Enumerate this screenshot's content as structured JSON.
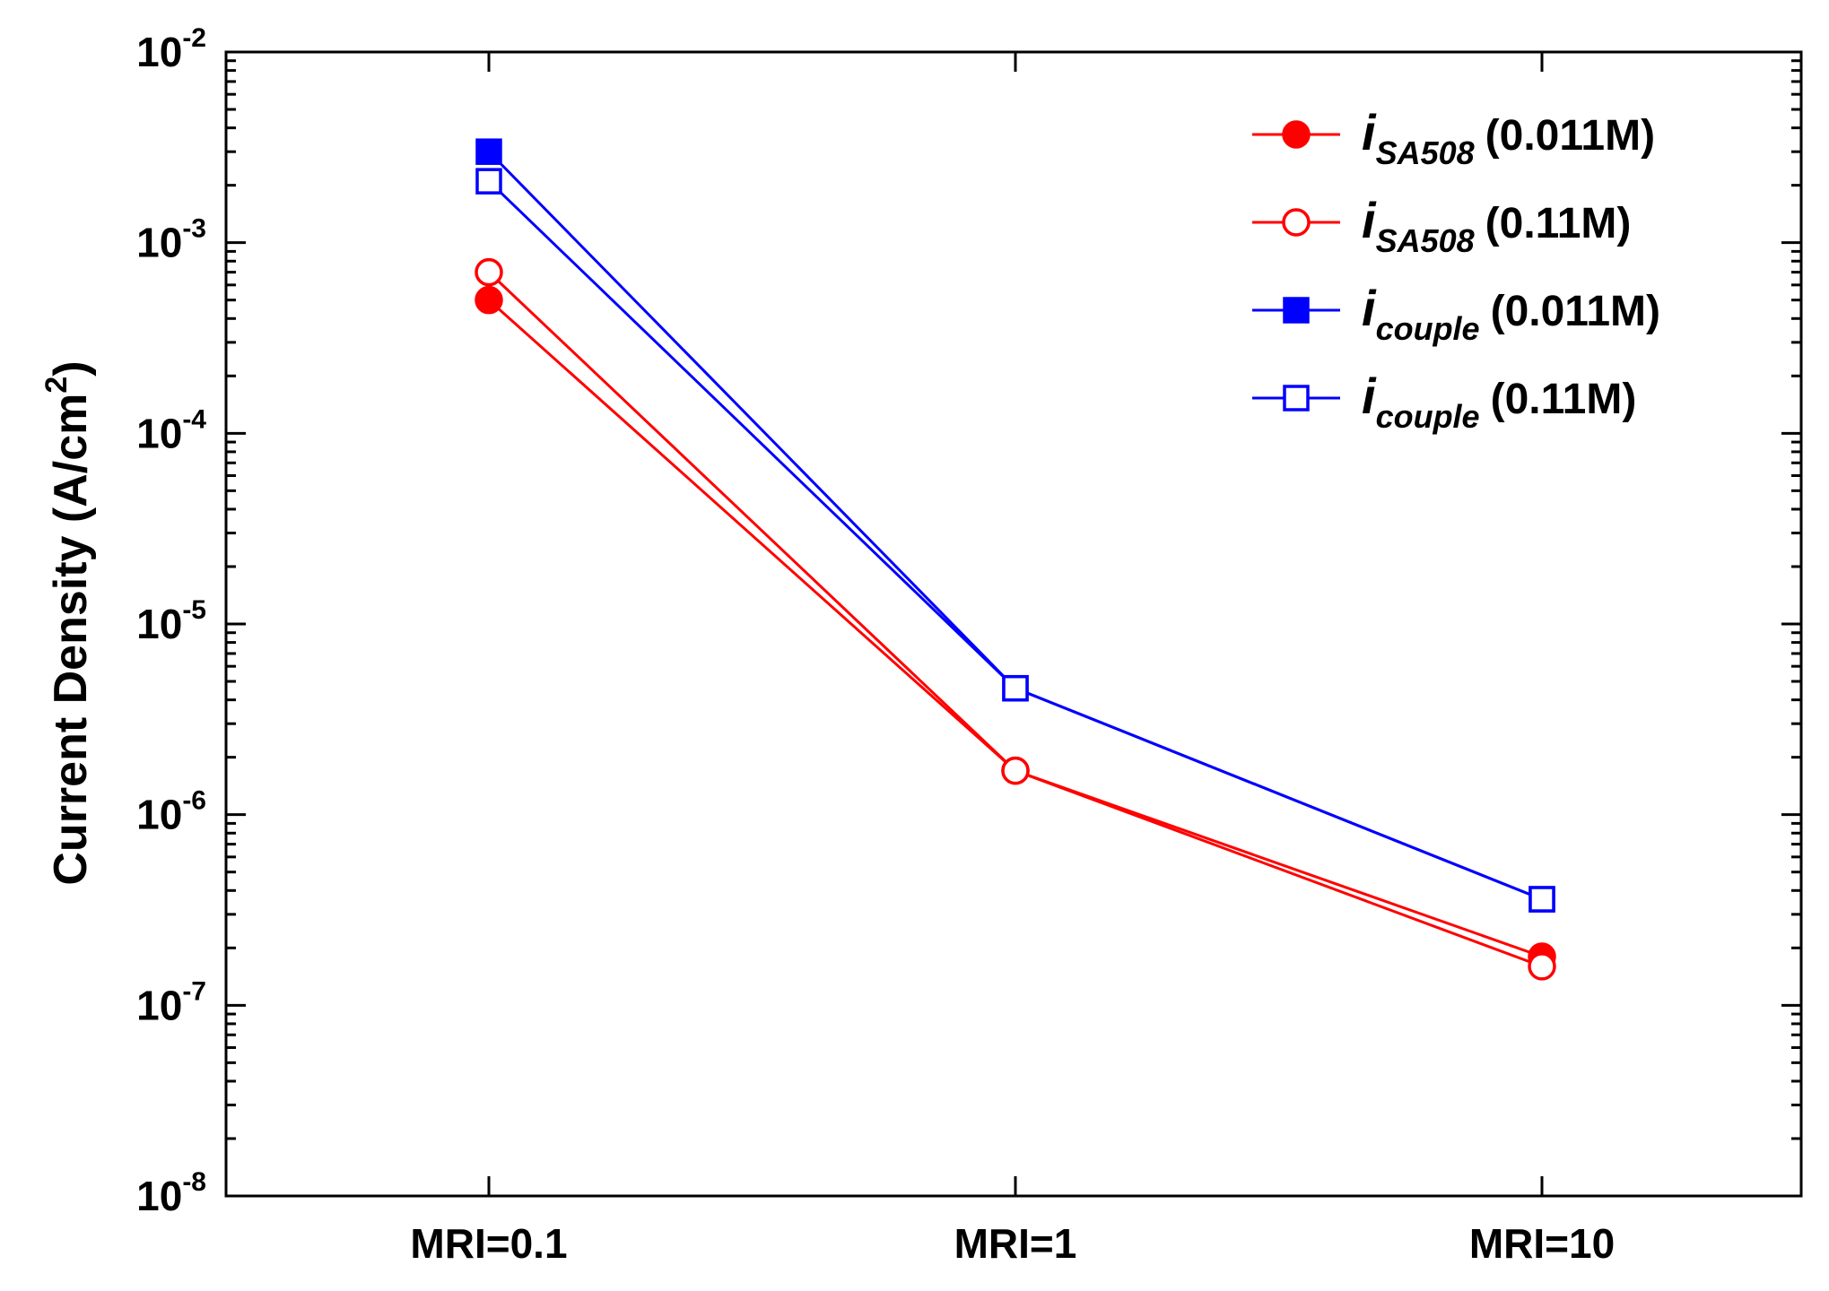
{
  "chart_data": {
    "type": "line",
    "ylabel": "Current Density (A/cm",
    "ylabel_sup": "2",
    "ylabel_close": ")",
    "y_scale": "log",
    "ylim": [
      1e-08,
      0.01
    ],
    "y_ticks": [
      {
        "base": "10",
        "exp": "-2",
        "value": 0.01
      },
      {
        "base": "10",
        "exp": "-3",
        "value": 0.001
      },
      {
        "base": "10",
        "exp": "-4",
        "value": 0.0001
      },
      {
        "base": "10",
        "exp": "-5",
        "value": 1e-05
      },
      {
        "base": "10",
        "exp": "-6",
        "value": 1e-06
      },
      {
        "base": "10",
        "exp": "-7",
        "value": 1e-07
      },
      {
        "base": "10",
        "exp": "-8",
        "value": 1e-08
      }
    ],
    "categories": [
      "MRI=0.1",
      "MRI=1",
      "MRI=10"
    ],
    "legend_position": "top-right",
    "series": [
      {
        "name": "i SA508 (0.011M)",
        "italic": "i",
        "sub": "SA508",
        "suffix": "(0.011M)",
        "color": "#ff0000",
        "marker": "circle",
        "filled": true,
        "values": [
          0.0005,
          1.7e-06,
          1.8e-07
        ]
      },
      {
        "name": "i SA508 (0.11M)",
        "italic": "i",
        "sub": "SA508",
        "suffix": "(0.11M)",
        "color": "#ff0000",
        "marker": "circle",
        "filled": false,
        "values": [
          0.0007,
          1.7e-06,
          1.6e-07
        ]
      },
      {
        "name": "i couple (0.011M)",
        "italic": "i",
        "sub": "couple",
        "suffix": "(0.011M)",
        "color": "#0000ff",
        "marker": "square",
        "filled": true,
        "values": [
          0.003,
          4.6e-06,
          3.6e-07
        ]
      },
      {
        "name": "i couple (0.11M)",
        "italic": "i",
        "sub": "couple",
        "suffix": "(0.11M)",
        "color": "#0000ff",
        "marker": "square",
        "filled": false,
        "values": [
          0.0021,
          4.6e-06,
          3.6e-07
        ]
      }
    ]
  }
}
